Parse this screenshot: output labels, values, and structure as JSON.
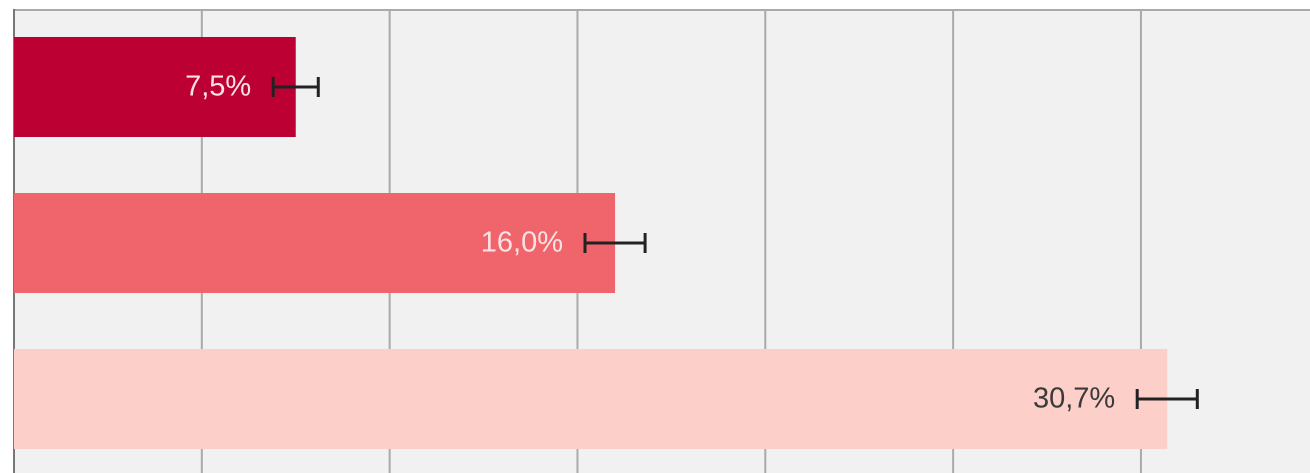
{
  "chart_data": {
    "type": "hbar",
    "values": [
      7.5,
      16.0,
      30.7
    ],
    "value_labels": [
      "7,5%",
      "16,0%",
      "30,7%"
    ],
    "errors": [
      0.6,
      0.8,
      0.8
    ],
    "colors": [
      "#bc0034",
      "#f0646b",
      "#fdcfc9"
    ],
    "xlim": [
      0,
      34.5
    ],
    "xticks": [
      0,
      5,
      10,
      15,
      20,
      25,
      30
    ],
    "grid": true
  }
}
